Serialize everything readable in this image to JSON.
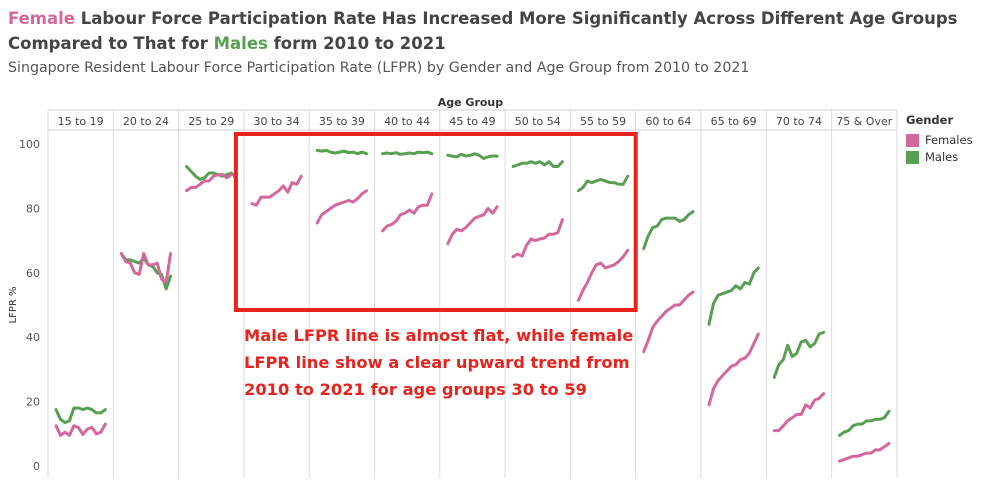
{
  "title_parts": {
    "female_word": "Female",
    "middle": " Labour Force Participation Rate Has Increased More Significantly Across Different Age Groups Compared to That for ",
    "male_word": "Males",
    "end": " form 2010 to 2021"
  },
  "subtitle": "Singapore Resident Labour Force Participation Rate (LFPR) by Gender and Age Group from 2010 to 2021",
  "annotation": "Male LFPR line is almost flat, while female LFPR line show a clear upward trend from 2010 to 2021 for age groups 30 to 59",
  "legend": {
    "title": "Gender",
    "items": [
      {
        "label": "Females",
        "color": "#d4679c"
      },
      {
        "label": "Males",
        "color": "#57a051"
      }
    ]
  },
  "colors": {
    "females": "#d4679c",
    "males": "#57a051",
    "highlight_box": "#e8231d"
  },
  "chart_data": {
    "type": "line",
    "title": "Female Labour Force Participation Rate Has Increased More Significantly Across Different Age Groups Compared to That for Males form 2010 to 2021",
    "xlabel": "Age Group",
    "ylabel": "LFPR %",
    "ylim": [
      0,
      100
    ],
    "yticks": [
      0,
      20,
      40,
      60,
      80,
      100
    ],
    "years": [
      2010,
      2011,
      2012,
      2013,
      2014,
      2015,
      2016,
      2017,
      2018,
      2019,
      2020,
      2021
    ],
    "grid": "vertical separators between panels",
    "legend_position": "right",
    "highlighted_panels": [
      "30 to 34",
      "35 to 39",
      "40 to 44",
      "45 to 49",
      "50 to 54",
      "55 to 59"
    ],
    "panels": [
      {
        "age_group": "15 to 19",
        "females": [
          12.5,
          9.5,
          10.5,
          9.5,
          12.5,
          12,
          9.8,
          11.5,
          12,
          10,
          10.5,
          13
        ],
        "males": [
          17.5,
          14.5,
          13.5,
          14,
          18,
          18,
          17.5,
          18,
          17.5,
          16.5,
          16.5,
          17.5
        ]
      },
      {
        "age_group": "20 to 24",
        "females": [
          66,
          63.5,
          63,
          60,
          59.5,
          66,
          62.5,
          62.5,
          63,
          58,
          57,
          66
        ],
        "males": [
          66,
          64,
          64,
          63.5,
          63,
          64.5,
          62.5,
          62,
          60,
          59.5,
          55,
          59
        ]
      },
      {
        "age_group": "25 to 29",
        "females": [
          85.5,
          86.5,
          86.5,
          87.5,
          88.5,
          88.5,
          90,
          90.5,
          90.5,
          89.5,
          90.5,
          90.5
        ],
        "males": [
          93,
          91.5,
          90,
          89,
          89.5,
          91,
          91,
          90.5,
          90,
          90.5,
          91,
          89.5
        ]
      },
      {
        "age_group": "30 to 34",
        "females": [
          81.5,
          81,
          83.5,
          83.5,
          83.5,
          84.5,
          85.5,
          87,
          85,
          88,
          87.5,
          90
        ]
      },
      {
        "age_group": "35 to 39",
        "females": [
          75.5,
          78,
          79,
          80,
          81,
          81.5,
          82,
          82.5,
          82,
          83,
          84.5,
          85.5
        ],
        "males": [
          98,
          97.8,
          98,
          97.5,
          97.2,
          97.5,
          97.8,
          97.3,
          97.5,
          97,
          97.5,
          97
        ]
      },
      {
        "age_group": "40 to 44",
        "females": [
          73,
          74.5,
          75,
          76,
          78,
          78.5,
          79.5,
          78.5,
          80.5,
          81,
          81,
          84.5
        ],
        "males": [
          97,
          97.2,
          97,
          97.3,
          96.8,
          97,
          97.2,
          97,
          97.5,
          97.3,
          97.5,
          97
        ]
      },
      {
        "age_group": "45 to 49",
        "females": [
          69,
          72,
          73.5,
          73,
          74,
          75.5,
          77,
          77.5,
          78,
          80,
          78.5,
          80.5
        ],
        "males": [
          96.5,
          96.2,
          96,
          96.8,
          96.3,
          96.5,
          97,
          96.5,
          95.5,
          96,
          96.3,
          96.2
        ]
      },
      {
        "age_group": "50 to 54",
        "females": [
          65,
          65.8,
          65.2,
          68.5,
          70.5,
          70,
          70.5,
          70.8,
          72,
          72,
          72.5,
          76.5
        ],
        "males": [
          93,
          93.5,
          94,
          94,
          94.5,
          94,
          94.5,
          93.5,
          94.5,
          93,
          93,
          94.5
        ]
      },
      {
        "age_group": "55 to 59",
        "females": [
          51.5,
          54.5,
          57,
          60,
          62.5,
          63,
          61.5,
          62,
          62.5,
          63.5,
          65,
          67
        ],
        "males": [
          85.5,
          86.5,
          88.5,
          88,
          88.5,
          89,
          88.5,
          88,
          88,
          87.5,
          87.5,
          90
        ]
      },
      {
        "age_group": "60 to 64",
        "females": [
          35.5,
          39,
          43,
          45,
          46.5,
          48,
          49,
          50,
          50,
          51.5,
          53,
          54
        ],
        "males": [
          67.5,
          71.5,
          74,
          74.5,
          76.5,
          77,
          77,
          77,
          76,
          76.5,
          78,
          79
        ]
      },
      {
        "age_group": "65 to 69",
        "females": [
          19,
          24,
          26.5,
          28,
          29.5,
          31,
          31.5,
          33,
          33.5,
          35,
          38,
          41
        ],
        "males": [
          44,
          50.5,
          53,
          53.5,
          54,
          54.5,
          56,
          55,
          57,
          56.5,
          60,
          61.5
        ]
      },
      {
        "age_group": "70 to 74",
        "females": [
          11,
          11,
          12.5,
          14,
          15,
          16,
          16,
          19,
          18,
          20.5,
          21,
          22.5
        ],
        "males": [
          27.5,
          31.5,
          33,
          37.5,
          34,
          35,
          38.5,
          39,
          37,
          38,
          41,
          41.5
        ]
      },
      {
        "age_group": "75 & Over",
        "females": [
          1.5,
          2,
          2.5,
          3,
          3,
          3.5,
          4,
          4,
          5,
          5,
          6,
          7
        ],
        "males": [
          9.5,
          10.5,
          11,
          12.5,
          13,
          13,
          14,
          14,
          14.5,
          14.5,
          15,
          17
        ]
      }
    ]
  }
}
